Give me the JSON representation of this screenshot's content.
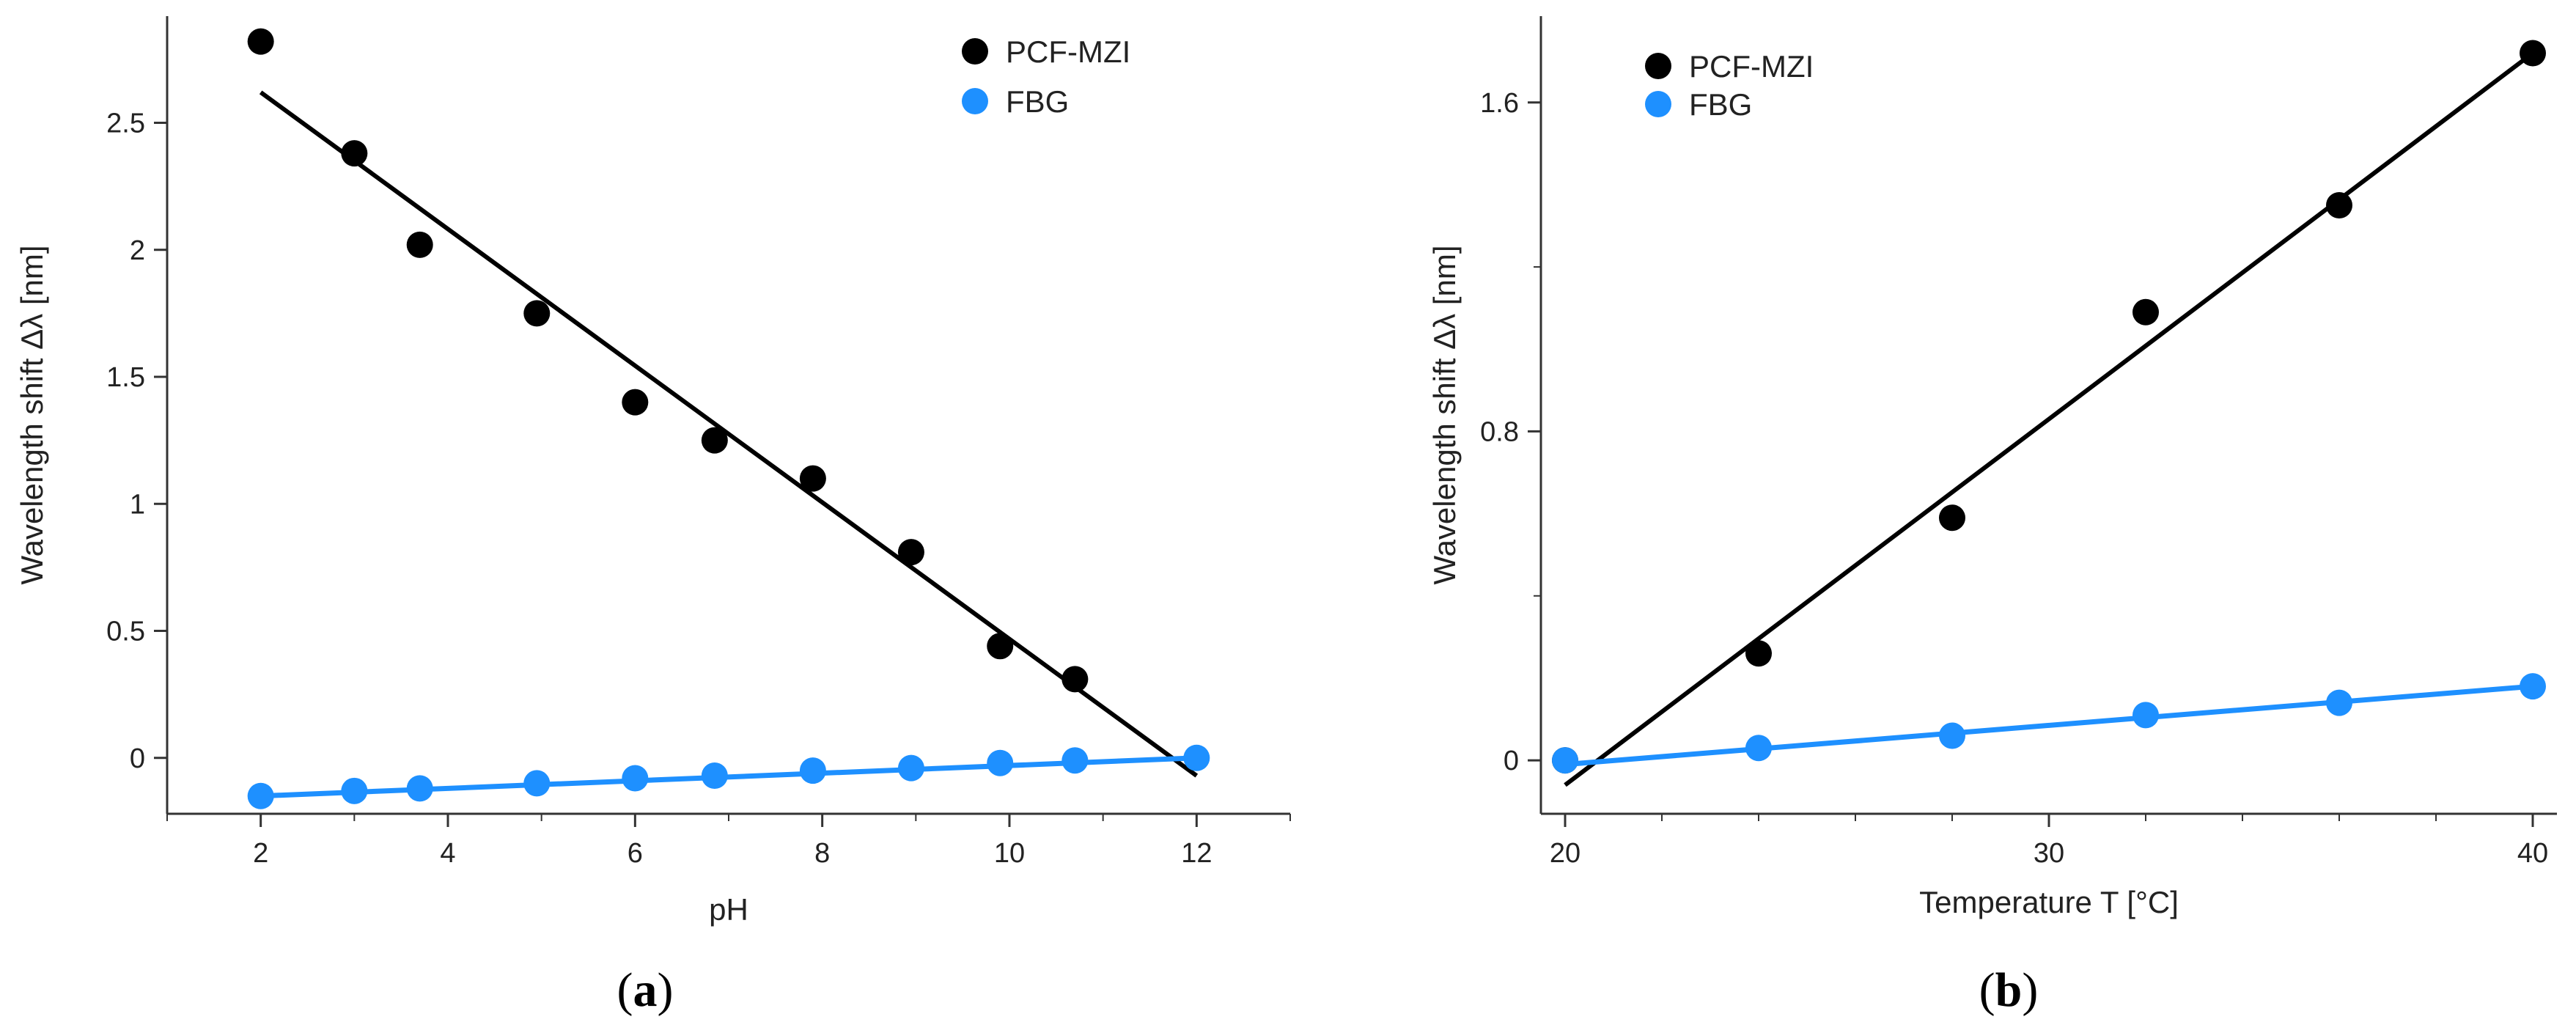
{
  "colors": {
    "pcf_mzi": "#000000",
    "fbg": "#1e90ff",
    "axis": "#333333"
  },
  "chart_data": [
    {
      "type": "scatter",
      "panel_label": "(a)",
      "panel_letter": "a",
      "xlabel": "pH",
      "ylabel": "Wavelength shift Δλ [nm]",
      "xlim": [
        1.0,
        13.0
      ],
      "ylim": [
        -0.22,
        2.92
      ],
      "xticks": [
        2,
        4,
        6,
        8,
        10,
        12
      ],
      "xtick_labels": [
        "2",
        "4",
        "6",
        "8",
        "10",
        "12"
      ],
      "xminor": [
        1,
        3,
        5,
        7,
        9,
        11,
        13
      ],
      "yticks": [
        0,
        0.5,
        1,
        1.5,
        2,
        2.5
      ],
      "ytick_labels": [
        "0",
        "0.5",
        "1",
        "1.5",
        "2",
        "2.5"
      ],
      "legend": {
        "position": "top-right",
        "entries": [
          "PCF-MZI",
          "FBG"
        ]
      },
      "series": [
        {
          "name": "PCF-MZI",
          "x": [
            2.0,
            3.0,
            3.7,
            4.95,
            6.0,
            6.85,
            7.9,
            8.95,
            9.9,
            10.7
          ],
          "y": [
            2.82,
            2.38,
            2.02,
            1.75,
            1.4,
            1.25,
            1.1,
            0.81,
            0.44,
            0.31
          ],
          "fit": {
            "x": [
              2.0,
              12.0
            ],
            "y": [
              2.62,
              -0.07
            ]
          }
        },
        {
          "name": "FBG",
          "x": [
            2.0,
            3.0,
            3.7,
            4.95,
            6.0,
            6.85,
            7.9,
            8.95,
            9.9,
            10.7,
            12.0
          ],
          "y": [
            -0.15,
            -0.13,
            -0.12,
            -0.1,
            -0.08,
            -0.07,
            -0.05,
            -0.04,
            -0.02,
            -0.01,
            0.0
          ],
          "fit": {
            "x": [
              2.0,
              12.0
            ],
            "y": [
              -0.15,
              0.0
            ]
          }
        }
      ]
    },
    {
      "type": "scatter",
      "panel_label": "(b)",
      "panel_letter": "b",
      "xlabel": "Temperature T [°C]",
      "ylabel": "Wavelength shift Δλ [nm]",
      "xlim": [
        19.5,
        40.5
      ],
      "ylim": [
        -0.13,
        1.81
      ],
      "xticks": [
        20,
        30,
        40
      ],
      "xtick_labels": [
        "20",
        "30",
        "40"
      ],
      "xminor": [
        22,
        24,
        26,
        28,
        32,
        34,
        36,
        38
      ],
      "yticks": [
        0,
        0.8,
        1.6
      ],
      "ytick_labels": [
        "0",
        "0.8",
        "1.6"
      ],
      "yminor": [
        0.4,
        1.2
      ],
      "legend": {
        "position": "top-left",
        "entries": [
          "PCF-MZI",
          "FBG"
        ]
      },
      "series": [
        {
          "name": "PCF-MZI",
          "x": [
            20,
            24,
            28,
            32,
            36,
            40
          ],
          "y": [
            0.0,
            0.26,
            0.59,
            1.09,
            1.35,
            1.72
          ],
          "fit": {
            "x": [
              20,
              40
            ],
            "y": [
              -0.06,
              1.72
            ]
          }
        },
        {
          "name": "FBG",
          "x": [
            20,
            24,
            28,
            32,
            36,
            40
          ],
          "y": [
            0.0,
            0.03,
            0.06,
            0.11,
            0.14,
            0.18
          ],
          "fit": {
            "x": [
              20,
              40
            ],
            "y": [
              -0.01,
              0.18
            ]
          }
        }
      ]
    }
  ]
}
